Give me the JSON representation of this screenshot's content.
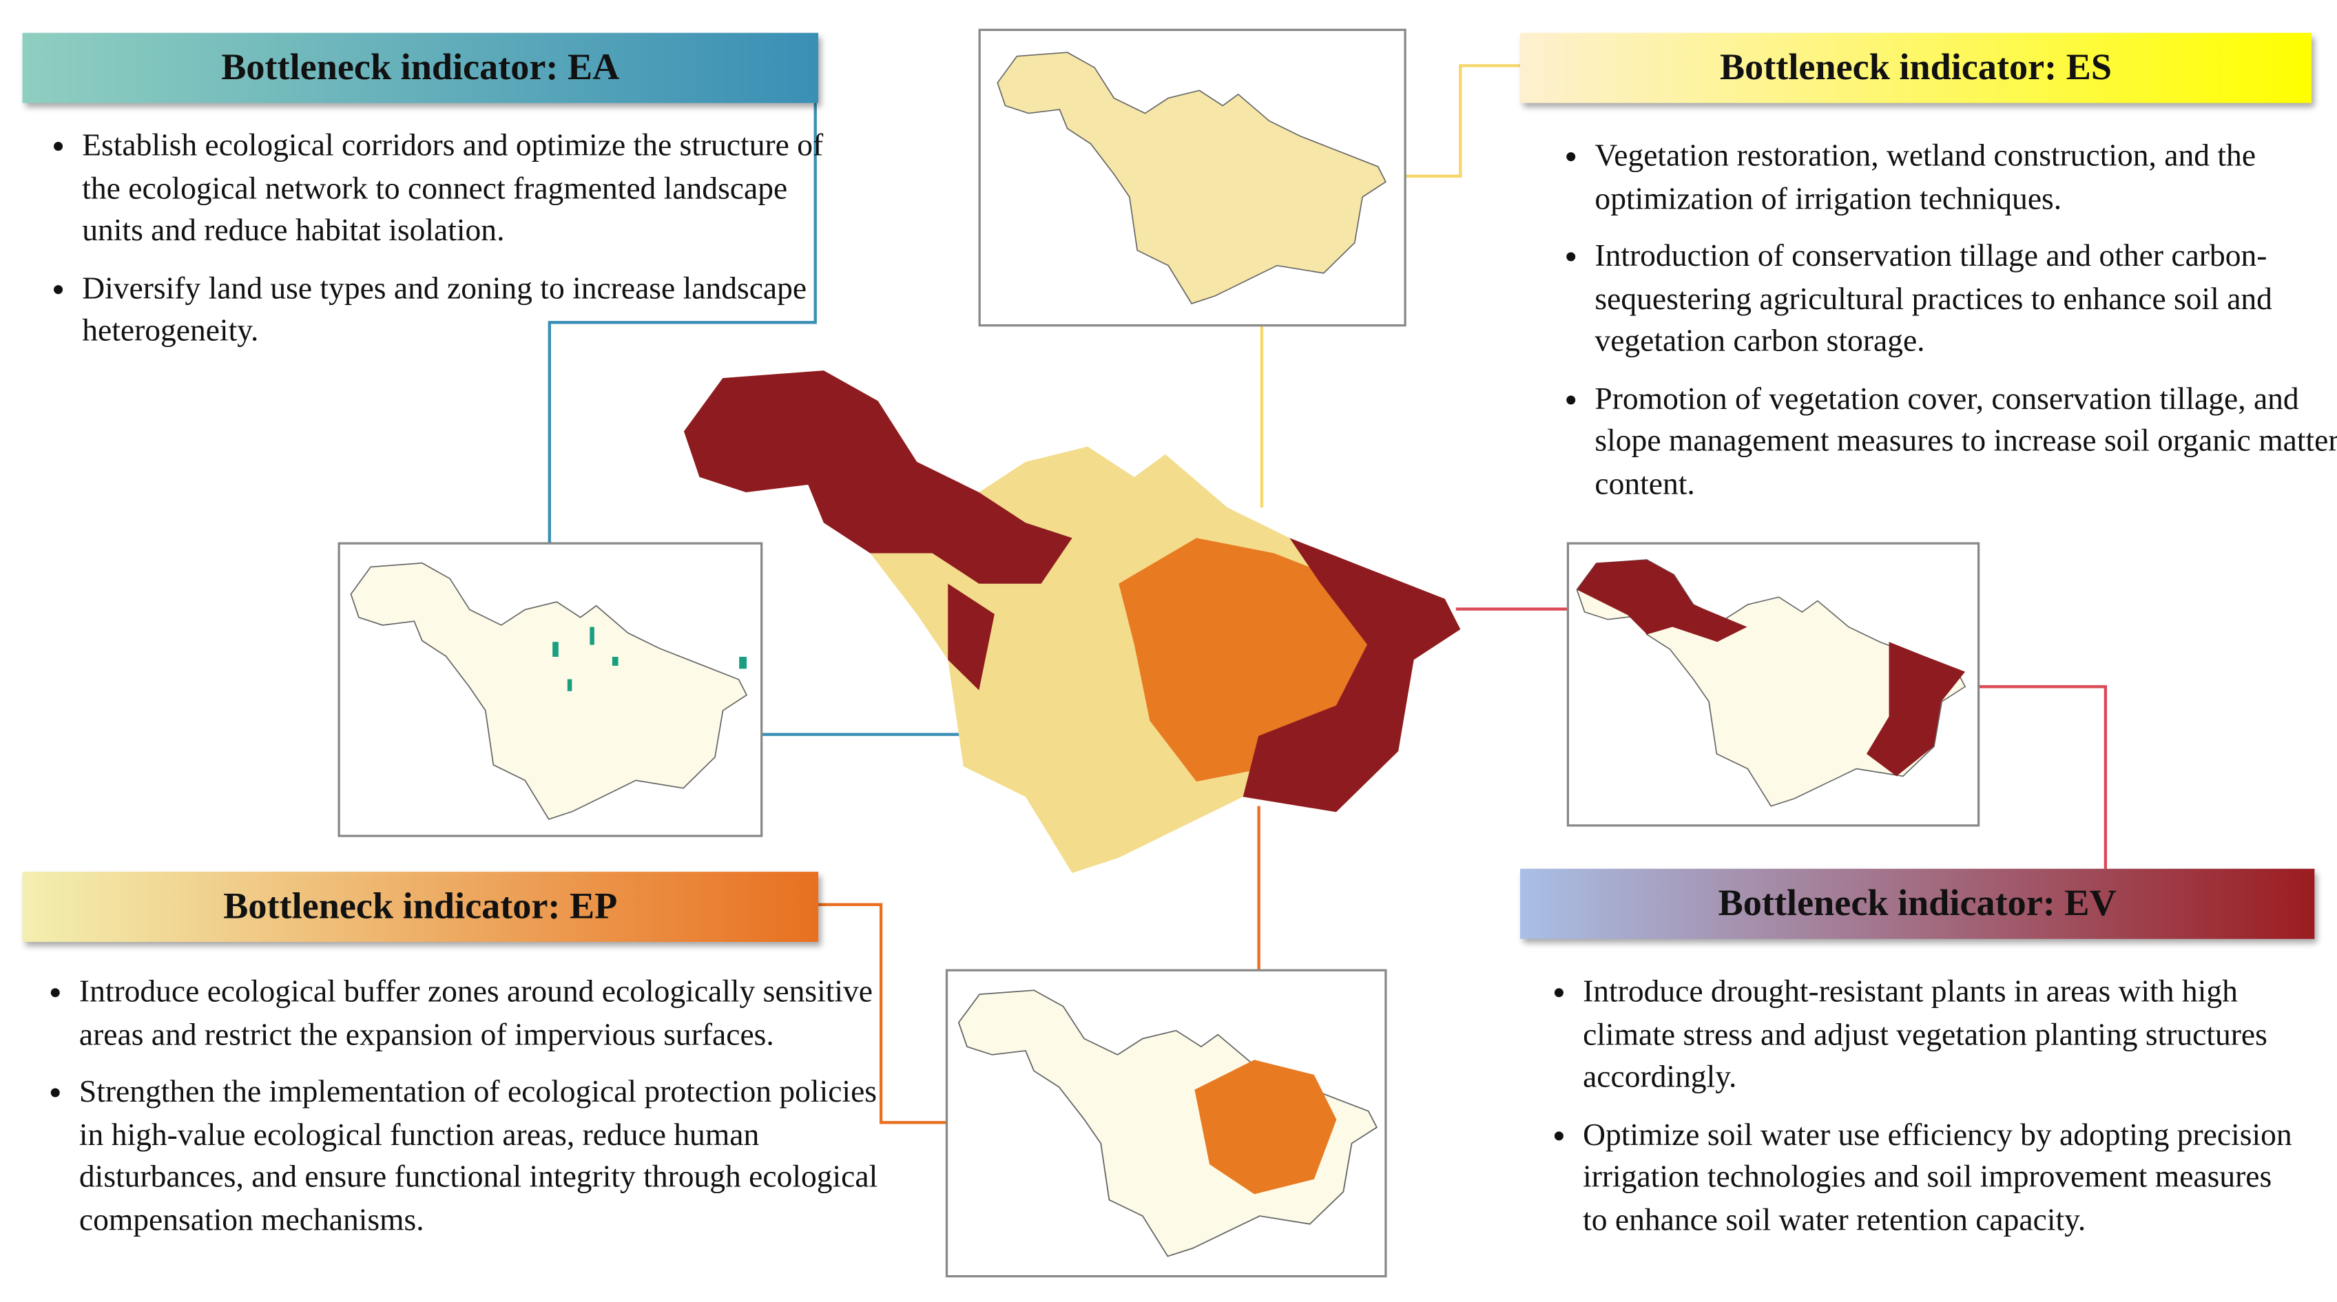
{
  "panels": [
    {
      "id": "EA",
      "title": "Bottleneck indicator: EA",
      "bullets": [
        "Establish ecological corridors and optimize the structure of the ecological network to connect fragmented landscape units and reduce habitat isolation.",
        "Diversify land use types and zoning to increase landscape heterogeneity."
      ]
    },
    {
      "id": "ES",
      "title": "Bottleneck indicator: ES",
      "bullets": [
        "Vegetation restoration, wetland construction, and the optimization of irrigation techniques.",
        "Introduction of conservation tillage and other carbon-sequestering agricultural practices to enhance soil and vegetation carbon storage.",
        "Promotion of vegetation cover, conservation tillage, and slope management measures to increase soil organic matter content."
      ]
    },
    {
      "id": "EP",
      "title": "Bottleneck indicator: EP",
      "bullets": [
        "Introduce ecological buffer zones around ecologically sensitive areas and restrict the expansion of impervious surfaces.",
        "Strengthen the implementation of ecological protection policies in high-value ecological function areas, reduce human disturbances, and ensure functional integrity through ecological compensation mechanisms."
      ]
    },
    {
      "id": "EV",
      "title": "Bottleneck indicator: EV",
      "bullets": [
        "Introduce drought-resistant plants in areas with high climate stress and adjust vegetation planting structures accordingly.",
        "Optimize soil water use efficiency by adopting precision irrigation technologies and soil improvement measures to enhance soil water retention capacity."
      ]
    }
  ]
}
